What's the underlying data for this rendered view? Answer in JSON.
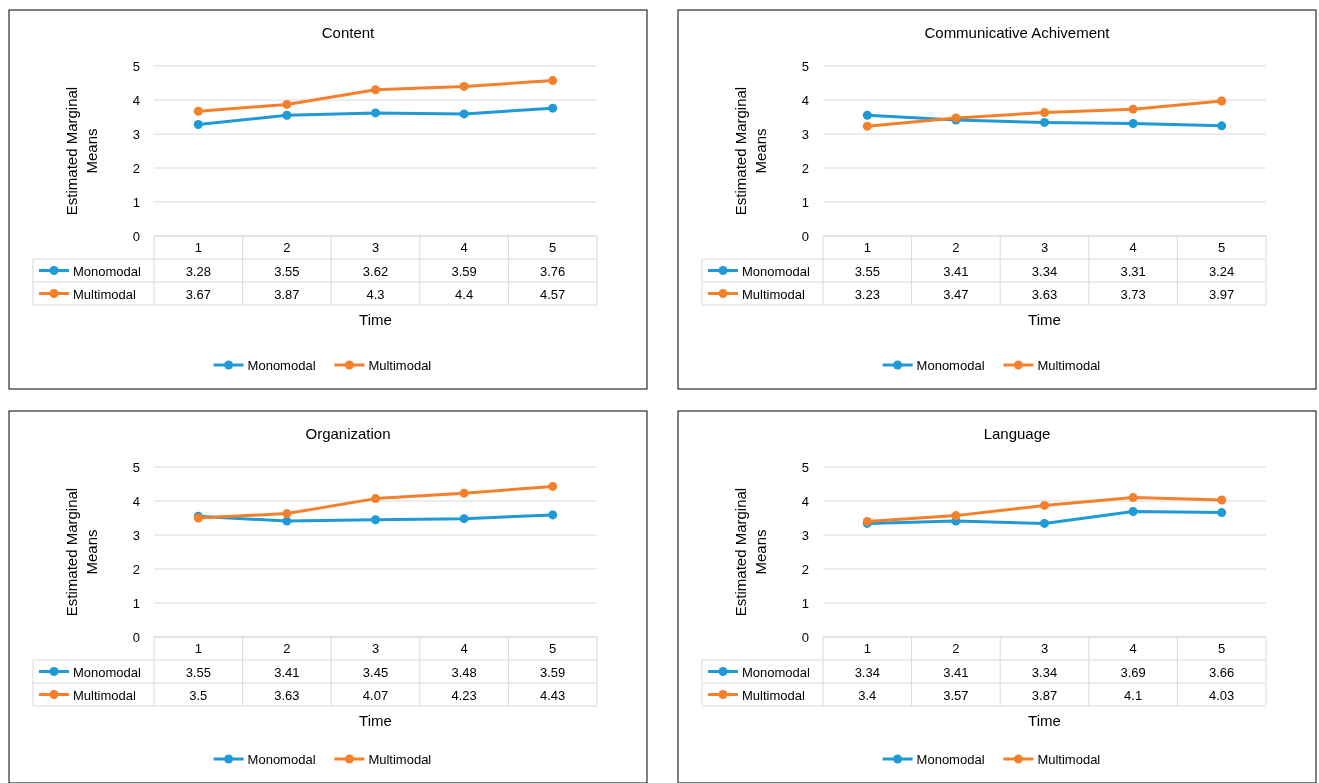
{
  "chart_data": [
    {
      "type": "line",
      "title": "Content",
      "xlabel": "Time",
      "ylabel": "Estimated Marginal Means",
      "categories": [
        "1",
        "2",
        "3",
        "4",
        "5"
      ],
      "ylim": [
        0,
        5
      ],
      "yticks": [
        0,
        1,
        2,
        3,
        4,
        5
      ],
      "grid": "y",
      "legend": "bottom",
      "marker": "circle",
      "data_labels": true,
      "series": [
        {
          "name": "Monomodal",
          "color": "#1f9ad6",
          "values": [
            3.28,
            3.55,
            3.62,
            3.59,
            3.76
          ]
        },
        {
          "name": "Multimodal",
          "color": "#f5802c",
          "values": [
            3.67,
            3.87,
            4.3,
            4.4,
            4.57
          ]
        }
      ]
    },
    {
      "type": "line",
      "title": "Communicative Achivement",
      "xlabel": "Time",
      "ylabel": "Estimated Marginal Means",
      "categories": [
        "1",
        "2",
        "3",
        "4",
        "5"
      ],
      "ylim": [
        0,
        5
      ],
      "yticks": [
        0,
        1,
        2,
        3,
        4,
        5
      ],
      "grid": "y",
      "legend": "bottom",
      "marker": "circle",
      "data_labels": true,
      "series": [
        {
          "name": "Monomodal",
          "color": "#1f9ad6",
          "values": [
            3.55,
            3.41,
            3.34,
            3.31,
            3.24
          ]
        },
        {
          "name": "Multimodal",
          "color": "#f5802c",
          "values": [
            3.23,
            3.47,
            3.63,
            3.73,
            3.97
          ]
        }
      ]
    },
    {
      "type": "line",
      "title": "Organization",
      "xlabel": "Time",
      "ylabel": "Estimated Marginal Means",
      "categories": [
        "1",
        "2",
        "3",
        "4",
        "5"
      ],
      "ylim": [
        0,
        5
      ],
      "yticks": [
        0,
        1,
        2,
        3,
        4,
        5
      ],
      "grid": "y",
      "legend": "bottom",
      "marker": "circle",
      "data_labels": true,
      "series": [
        {
          "name": "Monomodal",
          "color": "#1f9ad6",
          "values": [
            3.55,
            3.41,
            3.45,
            3.48,
            3.59
          ]
        },
        {
          "name": "Multimodal",
          "color": "#f5802c",
          "values": [
            3.5,
            3.63,
            4.07,
            4.23,
            4.43
          ]
        }
      ]
    },
    {
      "type": "line",
      "title": "Language",
      "xlabel": "Time",
      "ylabel": "Estimated Marginal Means",
      "categories": [
        "1",
        "2",
        "3",
        "4",
        "5"
      ],
      "ylim": [
        0,
        5
      ],
      "yticks": [
        0,
        1,
        2,
        3,
        4,
        5
      ],
      "grid": "y",
      "legend": "bottom",
      "marker": "circle",
      "data_labels": true,
      "series": [
        {
          "name": "Monomodal",
          "color": "#1f9ad6",
          "values": [
            3.34,
            3.41,
            3.34,
            3.69,
            3.66
          ]
        },
        {
          "name": "Multimodal",
          "color": "#f5802c",
          "values": [
            3.4,
            3.57,
            3.87,
            4.1,
            4.03
          ]
        }
      ]
    }
  ]
}
